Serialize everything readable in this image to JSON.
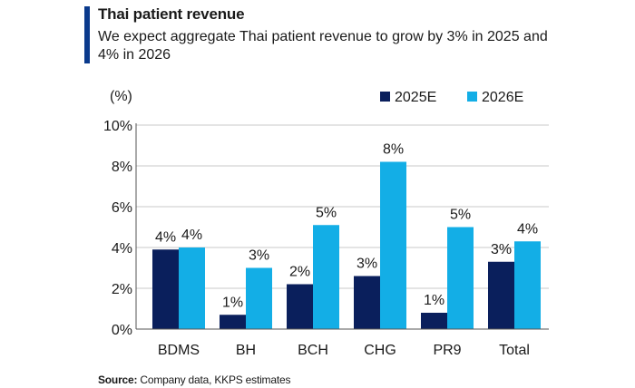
{
  "header": {
    "title": "Thai patient revenue",
    "subtitle": "We expect aggregate Thai patient revenue to grow by 3% in 2025 and 4% in 2026"
  },
  "footer": {
    "source_label": "Source:",
    "source_text": "Company data, KKPS estimates"
  },
  "colors": {
    "accent": "#0a3a8c",
    "series_2025": "#0a1f5c",
    "series_2026": "#13aee6",
    "grid": "#c8c8c8"
  },
  "chart_data": {
    "type": "bar",
    "title": "Thai patient revenue",
    "ylabel": "(%)",
    "xlabel": "",
    "ylim": [
      0,
      10
    ],
    "yticks": [
      0,
      2,
      4,
      6,
      8,
      10
    ],
    "ytick_labels": [
      "0%",
      "2%",
      "4%",
      "6%",
      "8%",
      "10%"
    ],
    "categories": [
      "BDMS",
      "BH",
      "BCH",
      "CHG",
      "PR9",
      "Total"
    ],
    "series": [
      {
        "name": "2025E",
        "values": [
          3.9,
          0.7,
          2.2,
          2.6,
          0.8,
          3.3
        ],
        "labels": [
          "4%",
          "1%",
          "2%",
          "3%",
          "1%",
          "3%"
        ]
      },
      {
        "name": "2026E",
        "values": [
          4.0,
          3.0,
          5.1,
          8.2,
          5.0,
          4.3
        ],
        "labels": [
          "4%",
          "3%",
          "5%",
          "8%",
          "5%",
          "4%"
        ]
      }
    ],
    "legend_position": "top-right",
    "grid": true
  }
}
